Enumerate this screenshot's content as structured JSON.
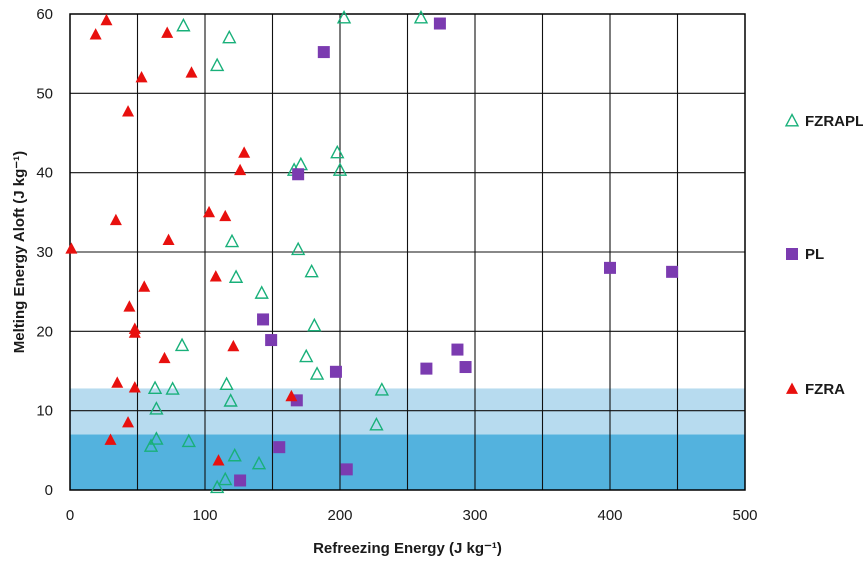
{
  "chart_data": {
    "type": "scatter",
    "xlabel": "Refreezing Energy (J kg⁻¹)",
    "ylabel": "Melting Energy Aloft (J kg⁻¹)",
    "xlim": [
      0,
      500
    ],
    "ylim": [
      0,
      60
    ],
    "x_ticks": [
      0,
      100,
      200,
      300,
      400,
      500
    ],
    "y_ticks": [
      0,
      10,
      20,
      30,
      40,
      50,
      60
    ],
    "grid": true,
    "legend_position": "right",
    "shaded_bands": [
      {
        "y_from": 0,
        "y_to": 7,
        "color": "#4aaedc"
      },
      {
        "y_from": 7,
        "y_to": 12.8,
        "color": "#b3d9ee"
      }
    ],
    "series": [
      {
        "name": "FZRAPL",
        "marker": "open-triangle",
        "color": "#19b07a",
        "points": [
          [
            84,
            58.5
          ],
          [
            118,
            57
          ],
          [
            203,
            59.5
          ],
          [
            260,
            59.5
          ],
          [
            109,
            53.5
          ],
          [
            166,
            40.3
          ],
          [
            171,
            41
          ],
          [
            198,
            42.5
          ],
          [
            200,
            40.3
          ],
          [
            120,
            31.3
          ],
          [
            169,
            30.3
          ],
          [
            123,
            26.8
          ],
          [
            179,
            27.5
          ],
          [
            142,
            24.8
          ],
          [
            181,
            20.7
          ],
          [
            83,
            18.2
          ],
          [
            175,
            16.8
          ],
          [
            183,
            14.6
          ],
          [
            116,
            13.3
          ],
          [
            63,
            12.8
          ],
          [
            76,
            12.7
          ],
          [
            119,
            11.2
          ],
          [
            231,
            12.6
          ],
          [
            64,
            10.2
          ],
          [
            227,
            8.2
          ],
          [
            64,
            6.4
          ],
          [
            60,
            5.5
          ],
          [
            88,
            6.1
          ],
          [
            122,
            4.3
          ],
          [
            140,
            3.3
          ],
          [
            115,
            1.3
          ],
          [
            109,
            0.3
          ]
        ]
      },
      {
        "name": "PL",
        "marker": "square",
        "color": "#7b3bb0",
        "points": [
          [
            274,
            58.8
          ],
          [
            188,
            55.2
          ],
          [
            169,
            39.8
          ],
          [
            143,
            21.5
          ],
          [
            149,
            18.9
          ],
          [
            197,
            14.9
          ],
          [
            264,
            15.3
          ],
          [
            287,
            17.7
          ],
          [
            293,
            15.5
          ],
          [
            168,
            11.3
          ],
          [
            400,
            28
          ],
          [
            446,
            27.5
          ],
          [
            155,
            5.4
          ],
          [
            205,
            2.6
          ],
          [
            126,
            1.2
          ]
        ]
      },
      {
        "name": "FZRA",
        "marker": "filled-triangle",
        "color": "#e8100e",
        "points": [
          [
            27,
            59.2
          ],
          [
            19,
            57.4
          ],
          [
            72,
            57.6
          ],
          [
            53,
            52
          ],
          [
            90,
            52.6
          ],
          [
            43,
            47.7
          ],
          [
            129,
            42.5
          ],
          [
            126,
            40.3
          ],
          [
            103,
            35
          ],
          [
            115,
            34.5
          ],
          [
            34,
            34
          ],
          [
            73,
            31.5
          ],
          [
            1,
            30.4
          ],
          [
            108,
            26.9
          ],
          [
            55,
            25.6
          ],
          [
            44,
            23.1
          ],
          [
            48,
            20.3
          ],
          [
            48,
            19.8
          ],
          [
            70,
            16.6
          ],
          [
            121,
            18.1
          ],
          [
            35,
            13.5
          ],
          [
            48,
            12.9
          ],
          [
            164,
            11.8
          ],
          [
            43,
            8.5
          ],
          [
            30,
            6.3
          ],
          [
            110,
            3.7
          ]
        ]
      }
    ]
  }
}
